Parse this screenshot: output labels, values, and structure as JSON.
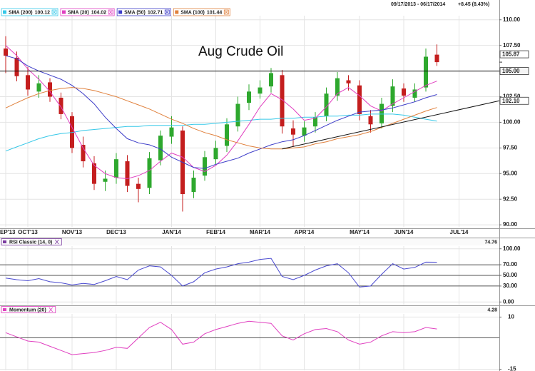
{
  "chart_data": [
    {
      "type": "candlestick",
      "title": "Aug Crude Oil",
      "date_range": "09/17/2013 - 06/17/2014",
      "change": "+8.45 (8.43%)",
      "categories": [
        "EP'13",
        null,
        "OCT'13",
        null,
        null,
        null,
        "NOV'13",
        null,
        null,
        null,
        "DEC'13",
        null,
        null,
        null,
        null,
        "JAN'14",
        null,
        null,
        null,
        "FEB'14",
        null,
        null,
        null,
        "MAR'14",
        null,
        null,
        null,
        "APR'14",
        null,
        null,
        null,
        null,
        "MAY'14",
        null,
        null,
        null,
        "JUN'14",
        null,
        null,
        null,
        null,
        "JUL'14",
        null,
        null,
        null
      ],
      "open": [
        107.2,
        106.3,
        104.6,
        103.0,
        103.9,
        102.4,
        100.6,
        97.8,
        96.0,
        94.2,
        94.6,
        96.2,
        94.0,
        93.6,
        96.3,
        98.6,
        99.2,
        93.2,
        94.8,
        96.4,
        97.7,
        99.6,
        101.9,
        102.8,
        103.5,
        104.6,
        99.4,
        98.7,
        99.6,
        100.6,
        102.6,
        104.1,
        103.6,
        100.6,
        99.9,
        101.6,
        103.3,
        102.4,
        103.4,
        106.6,
        null,
        null,
        null,
        null,
        null
      ],
      "high": [
        108.4,
        106.9,
        105.4,
        104.6,
        104.3,
        102.9,
        101.0,
        98.6,
        96.7,
        95.3,
        97.0,
        96.8,
        94.6,
        97.1,
        99.2,
        100.6,
        99.6,
        95.3,
        97.2,
        98.2,
        100.4,
        102.5,
        103.7,
        104.1,
        105.3,
        105.1,
        100.2,
        100.1,
        101.0,
        103.4,
        104.9,
        104.6,
        104.1,
        101.2,
        102.4,
        104.2,
        103.8,
        103.8,
        107.2,
        107.6,
        null,
        null,
        null,
        null,
        null
      ],
      "low": [
        104.8,
        104.0,
        102.6,
        102.4,
        102.0,
        100.3,
        97.0,
        95.6,
        93.4,
        93.3,
        94.0,
        93.2,
        92.2,
        93.0,
        95.8,
        97.9,
        91.3,
        92.6,
        94.3,
        95.9,
        97.1,
        99.1,
        101.2,
        102.3,
        102.9,
        98.9,
        97.6,
        98.1,
        99.0,
        100.1,
        102.1,
        103.1,
        100.2,
        99.0,
        99.4,
        101.0,
        102.0,
        102.0,
        103.0,
        105.5,
        null,
        null,
        null,
        null,
        null
      ],
      "close": [
        106.5,
        104.5,
        103.2,
        103.8,
        102.5,
        100.8,
        97.5,
        96.2,
        94.0,
        94.5,
        96.4,
        93.8,
        93.5,
        96.5,
        98.7,
        99.5,
        93.0,
        94.6,
        96.6,
        97.5,
        99.8,
        101.8,
        103.0,
        103.4,
        104.8,
        99.6,
        98.8,
        99.5,
        100.5,
        102.8,
        104.3,
        103.8,
        100.8,
        99.8,
        101.8,
        103.5,
        102.6,
        103.2,
        106.4,
        105.87,
        null,
        null,
        null,
        null,
        null
      ],
      "up_color": "#2ea82e",
      "down_color": "#c41e1e",
      "series": [
        {
          "name": "SMA (200)",
          "legend_value": 100.12,
          "color": "#35c8e8",
          "values": [
            97.2,
            97.6,
            98,
            98.4,
            98.7,
            98.9,
            99,
            99.2,
            99.3,
            99.4,
            99.5,
            99.6,
            99.6,
            99.7,
            99.7,
            99.7,
            99.7,
            99.8,
            99.8,
            99.9,
            100,
            100.1,
            100.2,
            100.3,
            100.3,
            100.4,
            100.4,
            100.5,
            100.5,
            100.6,
            100.6,
            100.7,
            100.7,
            100.8,
            100.8,
            100.8,
            100.7,
            100.5,
            100.3,
            100.12,
            null,
            null,
            null,
            null,
            null
          ]
        },
        {
          "name": "SMA (20)",
          "legend_value": 104.02,
          "color": "#e040c0",
          "values": [
            107.5,
            106.5,
            105.2,
            104.2,
            103,
            101.5,
            99.5,
            97.5,
            95.8,
            95,
            94.6,
            94.5,
            94.8,
            95.3,
            96.2,
            97,
            96.6,
            95.6,
            95.2,
            95.8,
            96.8,
            98.2,
            99.8,
            101.5,
            102.8,
            102.2,
            101.3,
            100.2,
            100.4,
            101.5,
            102.8,
            103.4,
            102.6,
            101.6,
            101.1,
            101.8,
            102.4,
            103,
            103.6,
            104.02,
            null,
            null,
            null,
            null,
            null
          ]
        },
        {
          "name": "SMA (50)",
          "legend_value": 102.71,
          "color": "#3c3cc8",
          "values": [
            106.5,
            106.2,
            105.5,
            105,
            104.6,
            104.2,
            103.6,
            102.8,
            101.8,
            100.5,
            99.4,
            98.4,
            98,
            97.8,
            97.4,
            96.6,
            96.1,
            95.6,
            95.5,
            95.9,
            96.2,
            96.5,
            97,
            97.4,
            97.8,
            98.1,
            98.3,
            98.7,
            99.2,
            99.7,
            100.2,
            100.6,
            101,
            101.1,
            101.2,
            101.4,
            101.7,
            102,
            102.4,
            102.71,
            null,
            null,
            null,
            null,
            null
          ]
        },
        {
          "name": "SMA (100)",
          "legend_value": 101.44,
          "color": "#e0803c",
          "values": [
            101.4,
            101.9,
            102.4,
            102.8,
            103.1,
            103.3,
            103.4,
            103.3,
            103.1,
            102.8,
            102.5,
            102.1,
            101.7,
            101.3,
            100.8,
            100.3,
            99.9,
            99.4,
            99,
            98.7,
            98.3,
            98,
            97.7,
            97.5,
            97.4,
            97.4,
            97.5,
            97.6,
            97.9,
            98.1,
            98.4,
            98.6,
            98.8,
            99.1,
            99.5,
            99.9,
            100.3,
            100.7,
            101.1,
            101.44,
            null,
            null,
            null,
            null,
            null
          ]
        }
      ],
      "hline": {
        "value": 105,
        "label": "105.00"
      },
      "trendline": {
        "from": 97.4,
        "to": 102.1,
        "label": "102.10"
      },
      "ylim": [
        89.8,
        110.4
      ],
      "yticks": [
        {
          "value": 110,
          "label": "110.00"
        },
        {
          "value": 107.5,
          "label": "107.50"
        },
        {
          "value": 105,
          "label": "105.00"
        },
        {
          "value": 102.5,
          "label": "102.50"
        },
        {
          "value": 100,
          "label": "100.00"
        },
        {
          "value": 97.5,
          "label": "97.50"
        },
        {
          "value": 95,
          "label": "95.00"
        },
        {
          "value": 92.5,
          "label": "92.50"
        },
        {
          "value": 90,
          "label": "90.00"
        }
      ],
      "grid": true
    },
    {
      "type": "line",
      "title": "RSI Classic (14, 0)",
      "color": "#4a4ad0",
      "title_color": "#7a3aa0",
      "values": [
        45,
        42,
        40,
        44,
        38,
        36,
        32,
        35,
        33,
        40,
        48,
        42,
        60,
        68,
        66,
        50,
        30,
        38,
        55,
        62,
        66,
        72,
        75,
        80,
        82,
        48,
        42,
        50,
        60,
        68,
        72,
        55,
        28,
        30,
        52,
        72,
        62,
        65,
        75,
        74.76,
        null,
        null,
        null,
        null,
        null
      ],
      "levels": [
        70,
        50,
        30
      ],
      "ylim": [
        -5,
        105
      ],
      "yticks": [
        {
          "value": 100,
          "label": "100.00"
        },
        {
          "value": 70,
          "label": "70.00"
        },
        {
          "value": 50,
          "label": "50.00"
        },
        {
          "value": 30,
          "label": "30.00"
        },
        {
          "value": 0,
          "label": "0.00"
        }
      ],
      "grid": true
    },
    {
      "type": "line",
      "title": "Momentum (20)",
      "color": "#e040c0",
      "title_color": "#e040c0",
      "values": [
        2.5,
        0.5,
        -1.5,
        -2,
        -4,
        -6,
        -8,
        -7.5,
        -7,
        -6,
        -4.5,
        -5,
        0,
        5,
        7.5,
        4,
        -3,
        -2,
        2,
        4,
        5.5,
        7,
        8,
        7.5,
        7,
        1,
        -1,
        2,
        4,
        4.5,
        3,
        -1,
        -3,
        -2,
        1,
        3,
        2.5,
        3,
        5,
        4.28,
        null,
        null,
        null,
        null,
        null
      ],
      "levels": [
        0
      ],
      "ylim": [
        -15.5,
        11.5
      ],
      "yticks": [
        10,
        -15
      ],
      "grid": true
    }
  ]
}
